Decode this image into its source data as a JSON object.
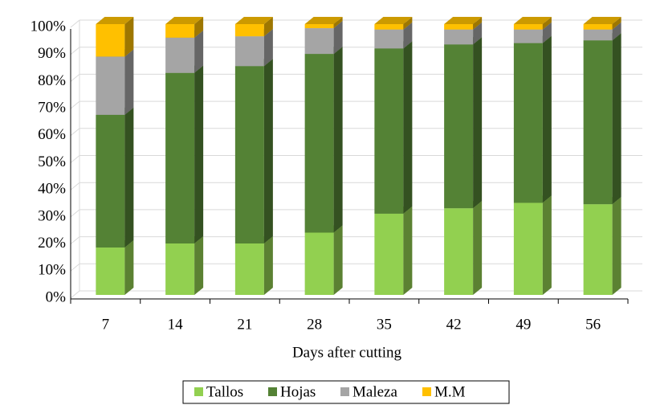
{
  "chart_data": {
    "type": "stacked_bar_3d",
    "x_label": "Days after cutting",
    "categories": [
      "7",
      "14",
      "21",
      "28",
      "35",
      "42",
      "49",
      "56"
    ],
    "series": [
      {
        "name": "Tallos",
        "color": "#92d050",
        "values": [
          17.5,
          19,
          19,
          23,
          30,
          32,
          34,
          33.5
        ]
      },
      {
        "name": "Hojas",
        "color": "#548235",
        "values": [
          49,
          63,
          65.5,
          66,
          61,
          60.5,
          59,
          60.5
        ]
      },
      {
        "name": "Maleza",
        "color": "#a5a5a5",
        "values": [
          21.5,
          13,
          11,
          9.5,
          7,
          5.5,
          5,
          4
        ]
      },
      {
        "name": "M.M",
        "color": "#ffc000",
        "values": [
          12,
          5,
          4.5,
          1.5,
          2,
          2,
          2,
          2
        ]
      }
    ],
    "ylim": [
      0,
      100
    ],
    "yticks": [
      {
        "value": 0,
        "label": "0%"
      },
      {
        "value": 10,
        "label": "10%"
      },
      {
        "value": 20,
        "label": "20%"
      },
      {
        "value": 30,
        "label": "30%"
      },
      {
        "value": 40,
        "label": "40%"
      },
      {
        "value": 50,
        "label": "50%"
      },
      {
        "value": 60,
        "label": "60%"
      },
      {
        "value": 70,
        "label": "70%"
      },
      {
        "value": 80,
        "label": "80%"
      },
      {
        "value": 90,
        "label": "90%"
      },
      {
        "value": 100,
        "label": "100%"
      }
    ],
    "grid": true,
    "legend": "bottom"
  }
}
